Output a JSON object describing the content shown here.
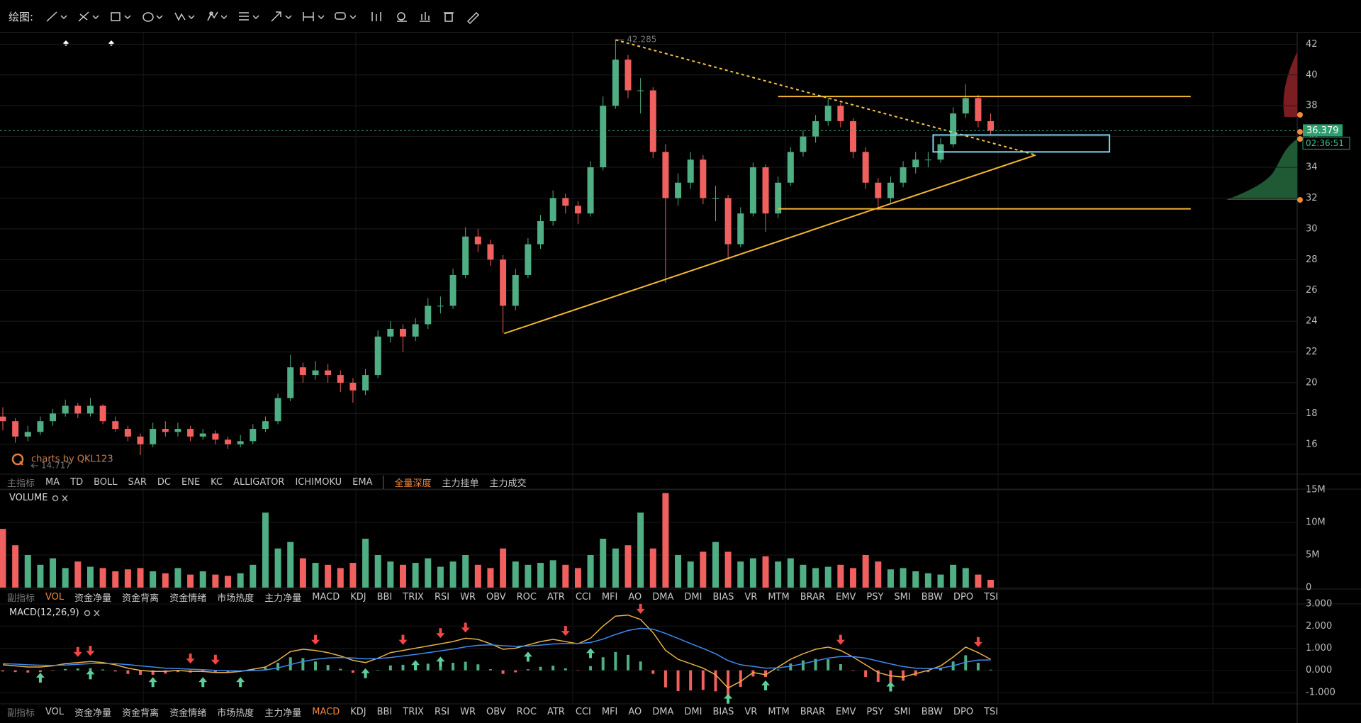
{
  "toolbar": {
    "label": "绘图:"
  },
  "main_tabs": {
    "items": [
      "主指标",
      "MA",
      "TD",
      "BOLL",
      "SAR",
      "DC",
      "ENE",
      "KC",
      "ALLIGATOR",
      "ICHIMOKU",
      "EMA",
      "全量深度",
      "主力挂单",
      "主力成交"
    ],
    "active_index": 11
  },
  "sub_tabs": {
    "items": [
      "副指标",
      "VOL",
      "资金净量",
      "资金背离",
      "资金情绪",
      "市场热度",
      "主力净量",
      "MACD",
      "KDJ",
      "BBI",
      "TRIX",
      "RSI",
      "WR",
      "OBV",
      "ROC",
      "ATR",
      "CCI",
      "MFI",
      "AO",
      "DMA",
      "DMI",
      "BIAS",
      "VR",
      "MTM",
      "BRAR",
      "EMV",
      "PSY",
      "SMI",
      "BBW",
      "DPO",
      "TSI"
    ],
    "active_index_rows": [
      1,
      7
    ]
  },
  "chart_data": [
    {
      "type": "candlestick",
      "watermark": "charts by QKL123",
      "ohlc": [
        [
          17.8,
          18.4,
          16.9,
          17.5
        ],
        [
          17.5,
          17.7,
          16.1,
          16.5
        ],
        [
          16.5,
          17.2,
          16.2,
          16.8
        ],
        [
          16.8,
          17.8,
          16.6,
          17.5
        ],
        [
          17.5,
          18.3,
          17.2,
          18.0
        ],
        [
          18.0,
          18.9,
          17.8,
          18.5
        ],
        [
          18.5,
          18.7,
          17.7,
          18.0
        ],
        [
          18.0,
          19.0,
          17.8,
          18.5
        ],
        [
          18.5,
          18.6,
          17.3,
          17.5
        ],
        [
          17.5,
          17.8,
          16.8,
          17.0
        ],
        [
          17.0,
          17.2,
          16.2,
          16.5
        ],
        [
          16.5,
          16.7,
          15.3,
          16.0
        ],
        [
          16.0,
          17.4,
          15.8,
          17.0
        ],
        [
          17.0,
          17.5,
          16.5,
          16.8
        ],
        [
          16.8,
          17.4,
          16.5,
          17.0
        ],
        [
          17.0,
          17.2,
          16.2,
          16.5
        ],
        [
          16.5,
          17.0,
          16.3,
          16.7
        ],
        [
          16.7,
          16.9,
          16.0,
          16.3
        ],
        [
          16.3,
          16.5,
          15.7,
          16.0
        ],
        [
          16.0,
          16.6,
          15.8,
          16.2
        ],
        [
          16.2,
          17.3,
          16.0,
          17.0
        ],
        [
          17.0,
          17.8,
          16.8,
          17.5
        ],
        [
          17.5,
          19.3,
          17.3,
          19.0
        ],
        [
          19.0,
          21.8,
          18.8,
          21.0
        ],
        [
          21.0,
          21.3,
          20.0,
          20.5
        ],
        [
          20.5,
          21.4,
          20.2,
          20.8
        ],
        [
          20.8,
          21.2,
          20.0,
          20.5
        ],
        [
          20.5,
          20.8,
          19.4,
          20.0
        ],
        [
          20.0,
          20.3,
          18.7,
          19.5
        ],
        [
          19.5,
          20.9,
          19.2,
          20.5
        ],
        [
          20.5,
          23.4,
          20.3,
          23.0
        ],
        [
          23.0,
          24.0,
          22.6,
          23.5
        ],
        [
          23.5,
          23.8,
          22.0,
          23.0
        ],
        [
          23.0,
          24.2,
          22.7,
          23.8
        ],
        [
          23.8,
          25.5,
          23.5,
          25.0
        ],
        [
          25.0,
          25.6,
          24.5,
          25.0
        ],
        [
          25.0,
          27.4,
          24.8,
          27.0
        ],
        [
          27.0,
          30.1,
          26.8,
          29.5
        ],
        [
          29.5,
          30.0,
          28.5,
          29.0
        ],
        [
          29.0,
          29.3,
          27.6,
          28.0
        ],
        [
          28.0,
          28.3,
          23.2,
          25.0
        ],
        [
          25.0,
          27.4,
          24.7,
          27.0
        ],
        [
          27.0,
          29.4,
          26.8,
          29.0
        ],
        [
          29.0,
          30.9,
          28.7,
          30.5
        ],
        [
          30.5,
          32.5,
          30.2,
          32.0
        ],
        [
          32.0,
          32.3,
          31.0,
          31.5
        ],
        [
          31.5,
          31.8,
          30.3,
          31.0
        ],
        [
          31.0,
          34.4,
          30.8,
          34.0
        ],
        [
          34.0,
          38.6,
          33.8,
          38.0
        ],
        [
          38.0,
          42.285,
          37.8,
          41.0
        ],
        [
          41.0,
          41.3,
          38.5,
          39.0
        ],
        [
          39.0,
          39.8,
          37.5,
          39.0
        ],
        [
          39.0,
          39.2,
          34.6,
          35.0
        ],
        [
          35.0,
          35.5,
          26.5,
          32.0
        ],
        [
          32.0,
          33.6,
          31.5,
          33.0
        ],
        [
          33.0,
          35.0,
          32.6,
          34.5
        ],
        [
          34.5,
          34.8,
          31.6,
          32.0
        ],
        [
          32.0,
          32.8,
          30.5,
          32.0
        ],
        [
          32.0,
          32.2,
          28.0,
          29.0
        ],
        [
          29.0,
          31.4,
          28.8,
          31.0
        ],
        [
          31.0,
          34.3,
          30.8,
          34.0
        ],
        [
          34.0,
          34.2,
          29.8,
          31.0
        ],
        [
          31.0,
          33.4,
          30.7,
          33.0
        ],
        [
          33.0,
          35.3,
          32.8,
          35.0
        ],
        [
          35.0,
          36.4,
          34.7,
          36.0
        ],
        [
          36.0,
          37.4,
          35.6,
          37.0
        ],
        [
          37.0,
          38.5,
          36.7,
          38.0
        ],
        [
          38.0,
          38.2,
          36.6,
          37.0
        ],
        [
          37.0,
          37.2,
          34.6,
          35.0
        ],
        [
          35.0,
          35.3,
          32.6,
          33.0
        ],
        [
          33.0,
          33.3,
          31.2,
          32.0
        ],
        [
          32.0,
          33.4,
          31.7,
          33.0
        ],
        [
          33.0,
          34.4,
          32.7,
          34.0
        ],
        [
          34.0,
          35.0,
          33.6,
          34.5
        ],
        [
          34.5,
          35.0,
          34.0,
          34.5
        ],
        [
          34.5,
          35.9,
          34.3,
          35.5
        ],
        [
          35.5,
          37.9,
          35.3,
          37.5
        ],
        [
          37.5,
          39.4,
          37.2,
          38.5
        ],
        [
          38.5,
          38.7,
          36.6,
          37.0
        ],
        [
          37.0,
          37.5,
          36.1,
          36.379
        ]
      ],
      "up_color": "#4fae84",
      "down_color": "#f0605e",
      "ylim": [
        14.1,
        42.8
      ],
      "yticks": [
        16,
        18,
        20,
        22,
        24,
        26,
        28,
        30,
        32,
        34,
        36,
        38,
        40,
        42
      ],
      "grid": true,
      "offscreen_low": 14.717,
      "last_price": 36.379,
      "countdown": "02:36:51",
      "trend_lines": [
        {
          "x": [
            49,
            82.6
          ],
          "y": [
            42.285,
            34.8
          ],
          "style": "dotted",
          "color": "#f5c542"
        },
        {
          "x": [
            40.1,
            82.6
          ],
          "y": [
            23.2,
            34.8
          ],
          "style": "solid",
          "color": "#f5b731"
        },
        {
          "x": [
            62,
            95
          ],
          "y": [
            38.6,
            38.6
          ],
          "style": "solid",
          "color": "#f5b731"
        },
        {
          "x": [
            62,
            95
          ],
          "y": [
            31.3,
            31.3
          ],
          "style": "solid",
          "color": "#f5b731"
        }
      ],
      "box": {
        "x": [
          74.4,
          88.5
        ],
        "y": [
          35.0,
          36.1
        ],
        "color": "#7fd3f0"
      }
    },
    {
      "type": "volume",
      "title": "VOLUME",
      "values": [
        9000000,
        6500000,
        5000000,
        3500000,
        4500000,
        3000000,
        4000000,
        3200000,
        3000000,
        2500000,
        2800000,
        3000000,
        2500000,
        2200000,
        3000000,
        2000000,
        2500000,
        2000000,
        1800000,
        2200000,
        3500000,
        11500000,
        6000000,
        7000000,
        4500000,
        3800000,
        3500000,
        3000000,
        3800000,
        7500000,
        5000000,
        4000000,
        3500000,
        3800000,
        4500000,
        3200000,
        4000000,
        5000000,
        3500000,
        3000000,
        6000000,
        4000000,
        3500000,
        3800000,
        4200000,
        3500000,
        3000000,
        5000000,
        7500000,
        6000000,
        6500000,
        11500000,
        6000000,
        14500000,
        5000000,
        4000000,
        5500000,
        7000000,
        5500000,
        4000000,
        4500000,
        4800000,
        4000000,
        4500000,
        3500000,
        3000000,
        3200000,
        3500000,
        3000000,
        5000000,
        4000000,
        2800000,
        3000000,
        2500000,
        2200000,
        2000000,
        3500000,
        3000000,
        2000000,
        1200000
      ],
      "ylim": [
        0,
        15000000
      ],
      "yticks": [
        0,
        {
          "value": 5000000,
          "label": "5M"
        },
        {
          "value": 10000000,
          "label": "10M"
        },
        {
          "value": 15000000,
          "label": "15M"
        }
      ]
    },
    {
      "type": "macd",
      "title": "MACD(12,26,9)",
      "dif": [
        0.25,
        0.2,
        0.15,
        0.15,
        0.2,
        0.3,
        0.35,
        0.4,
        0.35,
        0.25,
        0.1,
        0.0,
        -0.05,
        -0.05,
        0.0,
        -0.05,
        -0.05,
        -0.1,
        -0.1,
        -0.05,
        0.05,
        0.15,
        0.45,
        0.85,
        0.95,
        0.9,
        0.8,
        0.65,
        0.45,
        0.35,
        0.55,
        0.8,
        0.9,
        1.0,
        1.1,
        1.2,
        1.3,
        1.45,
        1.4,
        1.2,
        0.95,
        1.0,
        1.15,
        1.3,
        1.4,
        1.3,
        1.2,
        1.45,
        2.0,
        2.45,
        2.5,
        2.3,
        1.7,
        0.9,
        0.5,
        0.3,
        0.1,
        -0.2,
        -0.8,
        -0.5,
        -0.1,
        -0.2,
        0.15,
        0.5,
        0.75,
        0.95,
        1.05,
        0.9,
        0.6,
        0.25,
        -0.1,
        -0.25,
        -0.3,
        -0.15,
        0.0,
        0.2,
        0.6,
        1.05,
        0.8,
        0.5
      ],
      "dea": [
        0.3,
        0.28,
        0.25,
        0.23,
        0.22,
        0.24,
        0.27,
        0.3,
        0.31,
        0.3,
        0.26,
        0.2,
        0.15,
        0.1,
        0.08,
        0.05,
        0.03,
        0.0,
        -0.02,
        -0.03,
        -0.01,
        0.02,
        0.11,
        0.26,
        0.4,
        0.5,
        0.56,
        0.58,
        0.56,
        0.52,
        0.53,
        0.58,
        0.65,
        0.72,
        0.8,
        0.88,
        0.96,
        1.06,
        1.13,
        1.15,
        1.11,
        1.09,
        1.1,
        1.14,
        1.19,
        1.21,
        1.21,
        1.26,
        1.41,
        1.62,
        1.8,
        1.9,
        1.86,
        1.67,
        1.44,
        1.21,
        0.99,
        0.75,
        0.44,
        0.25,
        0.18,
        0.1,
        0.11,
        0.19,
        0.3,
        0.43,
        0.55,
        0.62,
        0.62,
        0.55,
        0.42,
        0.29,
        0.17,
        0.1,
        0.08,
        0.1,
        0.2,
        0.37,
        0.46,
        0.47
      ],
      "hist": [
        -0.05,
        -0.08,
        -0.1,
        -0.08,
        -0.02,
        0.06,
        0.08,
        0.1,
        0.04,
        -0.05,
        -0.16,
        -0.2,
        -0.2,
        -0.15,
        -0.08,
        -0.1,
        -0.08,
        -0.1,
        -0.08,
        -0.02,
        0.06,
        0.13,
        0.34,
        0.59,
        0.55,
        0.4,
        0.24,
        0.07,
        -0.11,
        -0.17,
        0.02,
        0.22,
        0.25,
        0.28,
        0.3,
        0.32,
        0.34,
        0.39,
        0.27,
        0.05,
        -0.16,
        -0.09,
        0.05,
        0.16,
        0.21,
        0.09,
        -0.01,
        0.19,
        0.59,
        0.83,
        0.7,
        0.4,
        -0.16,
        -0.77,
        -0.94,
        -0.91,
        -0.89,
        -0.95,
        -1.24,
        -0.75,
        -0.28,
        -0.3,
        0.04,
        0.31,
        0.45,
        0.52,
        0.5,
        0.28,
        -0.02,
        -0.3,
        -0.52,
        -0.54,
        -0.47,
        -0.25,
        -0.08,
        0.1,
        0.4,
        0.68,
        0.34,
        0.03
      ],
      "dif_color": "#e8b04a",
      "dea_color": "#3d8bf0",
      "up_color": "#4fae84",
      "down_color": "#f0605e",
      "sell_signals": [
        6,
        7,
        15,
        17,
        25,
        32,
        35,
        37,
        45,
        51,
        67,
        78
      ],
      "buy_signals": [
        3,
        7,
        12,
        16,
        19,
        29,
        33,
        35,
        42,
        47,
        58,
        61,
        71
      ],
      "ylim": [
        -1.58,
        3.13
      ],
      "yticks": [
        {
          "value": -1,
          "label": "-1.000"
        },
        {
          "value": 0,
          "label": "0.000"
        },
        {
          "value": 1,
          "label": "1.000"
        },
        {
          "value": 2,
          "label": "2.000"
        },
        {
          "value": 3,
          "label": "3.000"
        }
      ]
    }
  ]
}
